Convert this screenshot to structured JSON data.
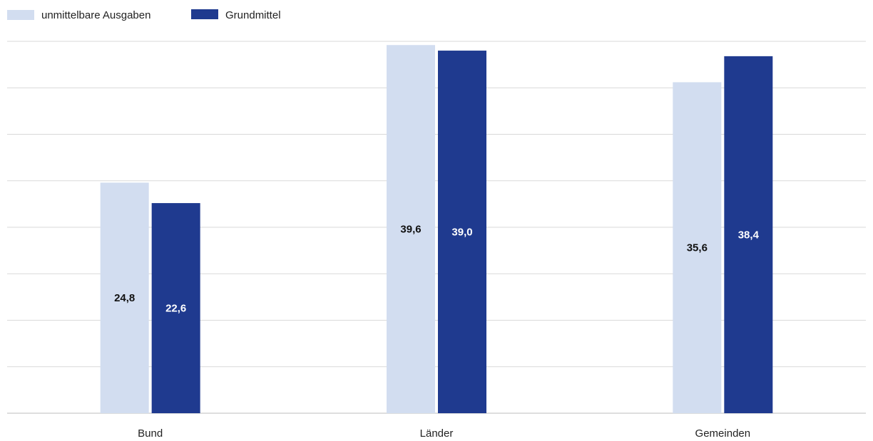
{
  "chart_data": {
    "type": "bar",
    "categories": [
      "Bund",
      "Länder",
      "Gemeinden"
    ],
    "series": [
      {
        "name": "unmittelbare Ausgaben",
        "values": [
          24.8,
          39.6,
          35.6
        ],
        "labels": [
          "24,8",
          "39,6",
          "35,6"
        ],
        "color": "#d2ddf0",
        "label_color": "#111111"
      },
      {
        "name": "Grundmittel",
        "values": [
          22.6,
          39.0,
          38.4
        ],
        "labels": [
          "22,6",
          "39,0",
          "38,4"
        ],
        "color": "#1f3a8f",
        "label_color": "#ffffff"
      }
    ],
    "ylim": [
      0,
      40
    ],
    "grid": true,
    "legend_position": "top-left"
  }
}
